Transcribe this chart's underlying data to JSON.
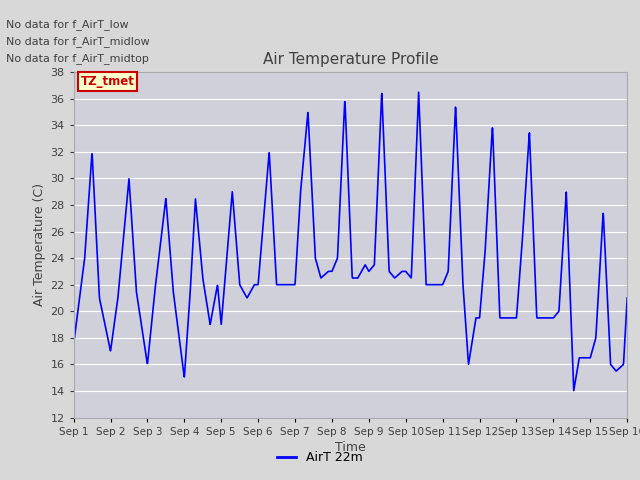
{
  "title": "Air Temperature Profile",
  "xlabel": "Time",
  "ylabel": "Air Temperature (C)",
  "ylim": [
    12,
    38
  ],
  "yticks": [
    12,
    14,
    16,
    18,
    20,
    22,
    24,
    26,
    28,
    30,
    32,
    34,
    36,
    38
  ],
  "line_color": "#0000ff",
  "line_width": 1.2,
  "legend_label": "AirT 22m",
  "bg_color": "#d8d8d8",
  "plot_bg_color": "#d0d0d8",
  "grid_color": "#ffffff",
  "text_color": "#404040",
  "annotations": [
    "No data for f_AirT_low",
    "No data for f_AirT_midlow",
    "No data for f_AirT_midtop"
  ],
  "legend_box_facecolor": "#ffffcc",
  "legend_box_edgecolor": "#cc0000",
  "legend_text": "TZ_tmet",
  "xtick_labels": [
    "Sep 1",
    "Sep 2",
    "Sep 3",
    "Sep 4",
    "Sep 5",
    "Sep 6",
    "Sep 7",
    "Sep 8",
    "Sep 9",
    "Sep 10",
    "Sep 11",
    "Sep 12",
    "Sep 13",
    "Sep 14",
    "Sep 15",
    "Sep 16"
  ],
  "sharp_data": {
    "t": [
      0.0,
      0.3,
      0.5,
      0.7,
      1.0,
      1.2,
      1.5,
      1.7,
      2.0,
      2.2,
      2.5,
      2.7,
      3.0,
      3.15,
      3.3,
      3.5,
      3.7,
      3.9,
      4.0,
      4.15,
      4.3,
      4.5,
      4.7,
      4.9,
      5.0,
      5.15,
      5.3,
      5.5,
      5.7,
      5.9,
      6.0,
      6.15,
      6.35,
      6.55,
      6.7,
      6.9,
      7.0,
      7.15,
      7.35,
      7.55,
      7.7,
      7.9,
      8.0,
      8.15,
      8.35,
      8.55,
      8.7,
      8.9,
      9.0,
      9.15,
      9.35,
      9.55,
      9.7,
      9.9,
      10.0,
      10.15,
      10.35,
      10.55,
      10.7,
      10.9,
      11.0,
      11.15,
      11.35,
      11.55,
      11.7,
      11.9,
      12.0,
      12.15,
      12.35,
      12.55,
      12.7,
      12.9,
      13.0,
      13.15,
      13.35,
      13.55,
      13.7,
      13.9,
      14.0,
      14.15,
      14.35,
      14.55,
      14.7,
      14.9,
      15.0
    ],
    "temp": [
      17.5,
      24.0,
      32.0,
      21.0,
      17.0,
      21.0,
      30.0,
      21.5,
      16.0,
      21.5,
      28.5,
      21.5,
      15.0,
      21.0,
      28.5,
      22.5,
      19.0,
      22.0,
      19.0,
      24.0,
      29.0,
      22.0,
      21.0,
      22.0,
      22.0,
      27.0,
      32.0,
      22.0,
      22.0,
      22.0,
      22.0,
      29.0,
      35.0,
      24.0,
      22.5,
      23.0,
      23.0,
      24.0,
      36.0,
      22.5,
      22.5,
      23.5,
      23.0,
      23.5,
      36.5,
      23.0,
      22.5,
      23.0,
      23.0,
      22.5,
      36.5,
      22.0,
      22.0,
      22.0,
      22.0,
      23.0,
      35.5,
      22.0,
      16.0,
      19.5,
      19.5,
      24.5,
      34.0,
      19.5,
      19.5,
      19.5,
      19.5,
      25.0,
      33.5,
      19.5,
      19.5,
      19.5,
      19.5,
      20.0,
      29.0,
      14.0,
      16.5,
      16.5,
      16.5,
      18.0,
      27.5,
      16.0,
      15.5,
      16.0,
      21.0
    ]
  }
}
